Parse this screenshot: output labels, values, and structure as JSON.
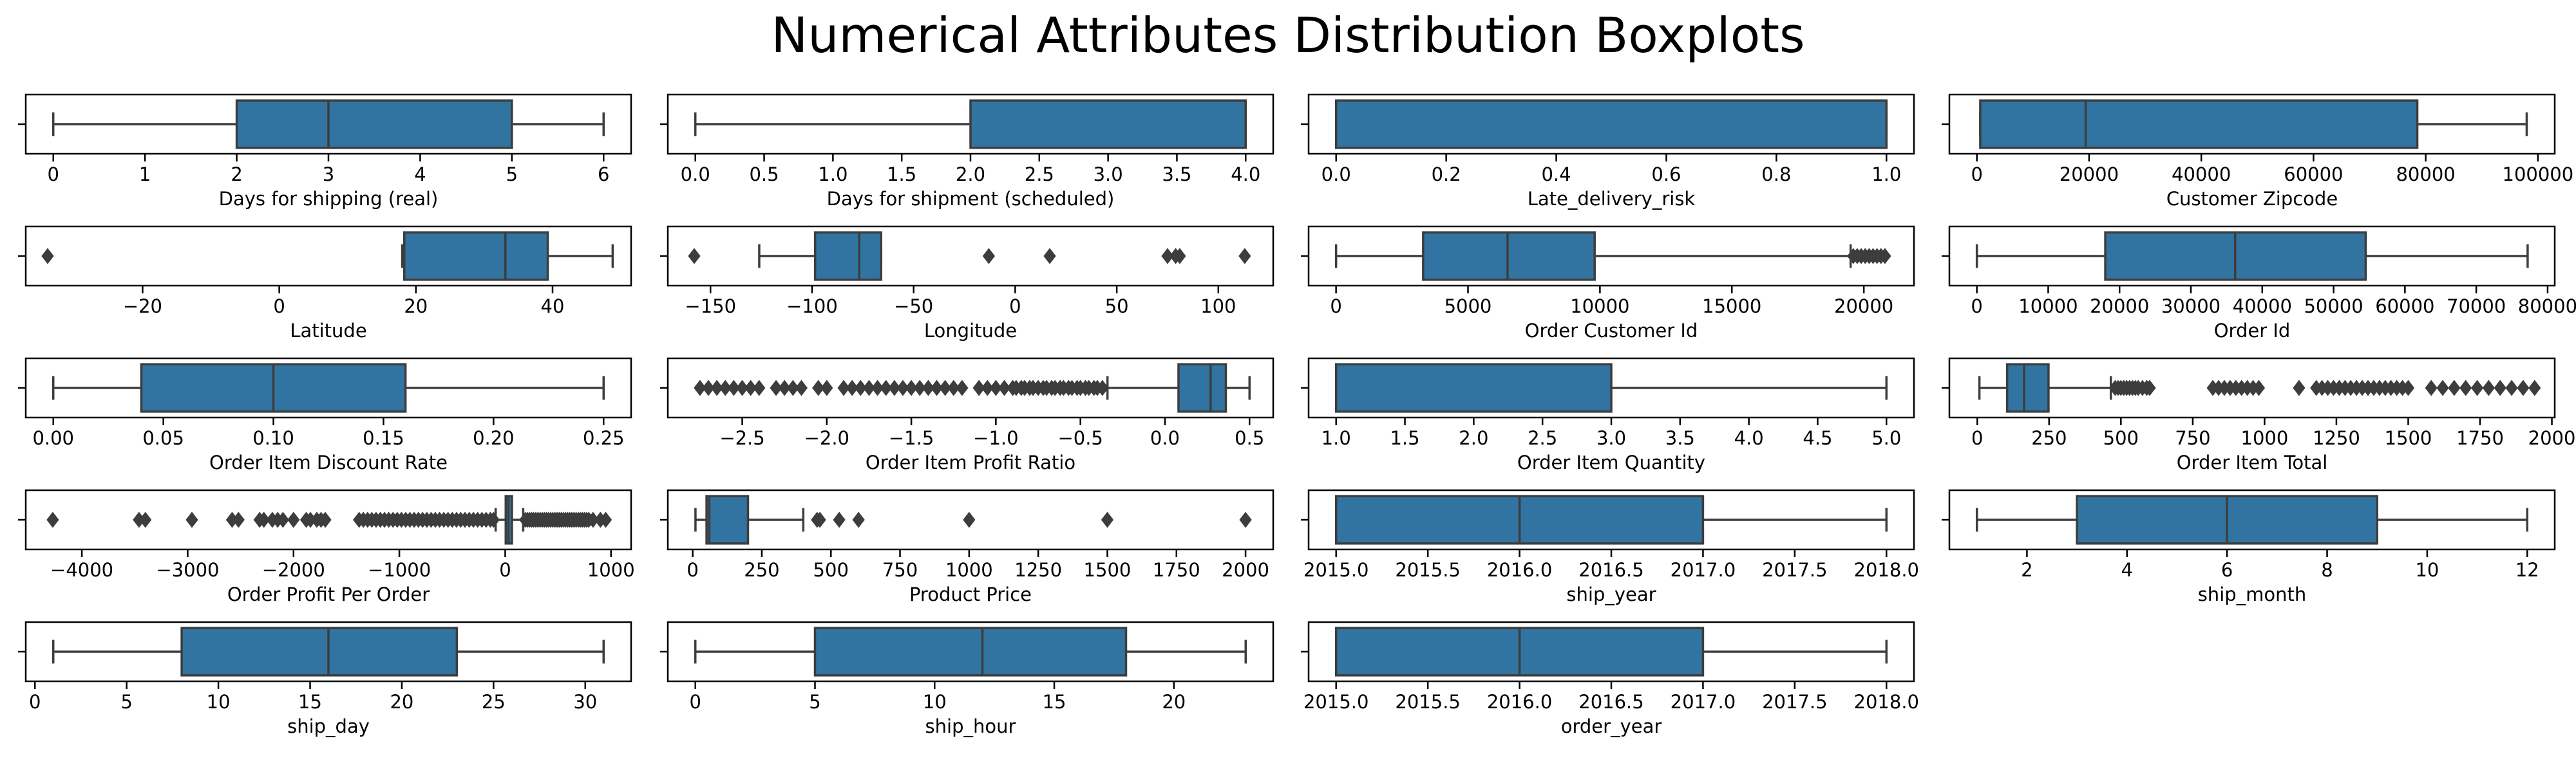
{
  "title": "Numerical Attributes Distribution Boxplots",
  "box_color": "#3274a1",
  "line_color": "#3d3d3d",
  "chart_data": [
    {
      "type": "boxplot",
      "xlabel": "Days for shipping (real)",
      "xlim": [
        -0.3,
        6.3
      ],
      "ticks": [
        0,
        1,
        2,
        3,
        4,
        5,
        6
      ],
      "tick_labels": [
        "0",
        "1",
        "2",
        "3",
        "4",
        "5",
        "6"
      ],
      "whisker_low": 0,
      "q1": 2,
      "median": 3,
      "q3": 5,
      "whisker_high": 6,
      "outliers": []
    },
    {
      "type": "boxplot",
      "xlabel": "Days for shipment (scheduled)",
      "xlim": [
        -0.2,
        4.2
      ],
      "ticks": [
        0,
        0.5,
        1,
        1.5,
        2,
        2.5,
        3,
        3.5,
        4
      ],
      "tick_labels": [
        "0.0",
        "0.5",
        "1.0",
        "1.5",
        "2.0",
        "2.5",
        "3.0",
        "3.5",
        "4.0"
      ],
      "whisker_low": 0,
      "q1": 2,
      "median": 4,
      "q3": 4,
      "whisker_high": 4,
      "outliers": []
    },
    {
      "type": "boxplot",
      "xlabel": "Late_delivery_risk",
      "xlim": [
        -0.05,
        1.05
      ],
      "ticks": [
        0,
        0.2,
        0.4,
        0.6,
        0.8,
        1
      ],
      "tick_labels": [
        "0.0",
        "0.2",
        "0.4",
        "0.6",
        "0.8",
        "1.0"
      ],
      "whisker_low": 0,
      "q1": 0,
      "median": 1,
      "q3": 1,
      "whisker_high": 1,
      "outliers": []
    },
    {
      "type": "boxplot",
      "xlabel": "Customer Zipcode",
      "xlim": [
        -4900,
        103000
      ],
      "ticks": [
        0,
        20000,
        40000,
        60000,
        80000,
        100000
      ],
      "tick_labels": [
        "0",
        "20000",
        "40000",
        "60000",
        "80000",
        "100000"
      ],
      "whisker_low": 600,
      "q1": 600,
      "median": 19400,
      "q3": 78500,
      "whisker_high": 98000,
      "outliers": []
    },
    {
      "type": "boxplot",
      "xlabel": "Latitude",
      "xlim": [
        -37.1,
        51.5
      ],
      "ticks": [
        -20,
        0,
        20,
        40
      ],
      "tick_labels": [
        "−20",
        "0",
        "20",
        "40"
      ],
      "whisker_low": 18,
      "q1": 18.3,
      "median": 33.1,
      "q3": 39.3,
      "whisker_high": 48.8,
      "outliers": [
        -33.9
      ]
    },
    {
      "type": "boxplot",
      "xlabel": "Longitude",
      "xlim": [
        -171,
        127
      ],
      "ticks": [
        -150,
        -100,
        -50,
        0,
        50,
        100
      ],
      "tick_labels": [
        "−150",
        "−100",
        "−50",
        "0",
        "50",
        "100"
      ],
      "whisker_low": -126,
      "q1": -98.5,
      "median": -76.8,
      "q3": -66,
      "whisker_high": -66,
      "outliers": [
        -158,
        -13,
        17,
        75,
        79,
        81,
        113
      ]
    },
    {
      "type": "boxplot",
      "xlabel": "Order Customer Id",
      "xlim": [
        -1040,
        21900
      ],
      "ticks": [
        0,
        5000,
        10000,
        15000,
        20000
      ],
      "tick_labels": [
        "0",
        "5000",
        "10000",
        "15000",
        "20000"
      ],
      "whisker_low": 1,
      "q1": 3300,
      "median": 6500,
      "q3": 9800,
      "whisker_high": 19500,
      "outliers": [
        19600,
        19750,
        19900,
        20050,
        20200,
        20350,
        20500,
        20650,
        20800
      ]
    },
    {
      "type": "boxplot",
      "xlabel": "Order Id",
      "xlim": [
        -3850,
        81000
      ],
      "ticks": [
        0,
        10000,
        20000,
        30000,
        40000,
        50000,
        60000,
        70000,
        80000
      ],
      "tick_labels": [
        "0",
        "10000",
        "20000",
        "30000",
        "40000",
        "50000",
        "60000",
        "70000",
        "80000"
      ],
      "whisker_low": 1,
      "q1": 18000,
      "median": 36200,
      "q3": 54500,
      "whisker_high": 77200,
      "outliers": []
    },
    {
      "type": "boxplot",
      "xlabel": "Order Item Discount Rate",
      "xlim": [
        -0.0125,
        0.2625
      ],
      "ticks": [
        0,
        0.05,
        0.1,
        0.15,
        0.2,
        0.25
      ],
      "tick_labels": [
        "0.00",
        "0.05",
        "0.10",
        "0.15",
        "0.20",
        "0.25"
      ],
      "whisker_low": 0,
      "q1": 0.04,
      "median": 0.1,
      "q3": 0.16,
      "whisker_high": 0.25,
      "outliers": []
    },
    {
      "type": "boxplot",
      "xlabel": "Order Item Profit Ratio",
      "xlim": [
        -2.94,
        0.64
      ],
      "ticks": [
        -2.5,
        -2,
        -1.5,
        -1,
        -0.5,
        0,
        0.5
      ],
      "tick_labels": [
        "−2.5",
        "−2.0",
        "−1.5",
        "−1.0",
        "−0.5",
        "0.0",
        "0.5"
      ],
      "whisker_low": -0.34,
      "q1": 0.08,
      "median": 0.27,
      "q3": 0.36,
      "whisker_high": 0.5,
      "outliers": [
        -2.75,
        -2.7,
        -2.65,
        -2.6,
        -2.55,
        -2.5,
        -2.45,
        -2.4,
        -2.3,
        -2.25,
        -2.2,
        -2.15,
        -2.05,
        -2.0,
        -1.9,
        -1.85,
        -1.8,
        -1.75,
        -1.7,
        -1.65,
        -1.6,
        -1.55,
        -1.5,
        -1.45,
        -1.4,
        -1.35,
        -1.3,
        -1.25,
        -1.2,
        -1.1,
        -1.05,
        -1.0,
        -0.95,
        -0.9,
        -0.88,
        -0.85,
        -0.83,
        -0.8,
        -0.78,
        -0.75,
        -0.72,
        -0.7,
        -0.67,
        -0.65,
        -0.62,
        -0.6,
        -0.57,
        -0.55,
        -0.52,
        -0.5,
        -0.47,
        -0.45,
        -0.42,
        -0.4,
        -0.37
      ]
    },
    {
      "type": "boxplot",
      "xlabel": "Order Item Quantity",
      "xlim": [
        0.8,
        5.2
      ],
      "ticks": [
        1,
        1.5,
        2,
        2.5,
        3,
        3.5,
        4,
        4.5,
        5
      ],
      "tick_labels": [
        "1.0",
        "1.5",
        "2.0",
        "2.5",
        "3.0",
        "3.5",
        "4.0",
        "4.5",
        "5.0"
      ],
      "whisker_low": 1,
      "q1": 1,
      "median": 1,
      "q3": 3,
      "whisker_high": 5,
      "outliers": []
    },
    {
      "type": "boxplot",
      "xlabel": "Order Item Total",
      "xlim": [
        -97,
        2010
      ],
      "ticks": [
        0,
        250,
        500,
        750,
        1000,
        1250,
        1500,
        1750,
        2000
      ],
      "tick_labels": [
        "0",
        "250",
        "500",
        "750",
        "1000",
        "1250",
        "1500",
        "1750",
        "2000"
      ],
      "whisker_low": 7.5,
      "q1": 104,
      "median": 163,
      "q3": 248,
      "whisker_high": 465,
      "outliers": [
        480,
        490,
        500,
        510,
        520,
        530,
        540,
        550,
        560,
        575,
        590,
        600,
        820,
        840,
        860,
        880,
        900,
        920,
        940,
        960,
        980,
        1120,
        1180,
        1200,
        1220,
        1240,
        1260,
        1280,
        1300,
        1320,
        1340,
        1360,
        1380,
        1400,
        1420,
        1440,
        1460,
        1480,
        1500,
        1580,
        1620,
        1660,
        1700,
        1740,
        1780,
        1820,
        1860,
        1900,
        1940
      ]
    },
    {
      "type": "boxplot",
      "xlabel": "Order Profit Per Order",
      "xlim": [
        -4530,
        1190
      ],
      "ticks": [
        -4000,
        -3000,
        -2000,
        -1000,
        0,
        1000
      ],
      "tick_labels": [
        "−4000",
        "−3000",
        "−2000",
        "−1000",
        "0",
        "1000"
      ],
      "whisker_low": -90,
      "q1": 5,
      "median": 31,
      "q3": 64,
      "whisker_high": 170,
      "outliers": [
        -4275,
        -3460,
        -3400,
        -2960,
        -2580,
        -2520,
        -2320,
        -2280,
        -2200,
        -2150,
        -2100,
        -2000,
        -1880,
        -1840,
        -1780,
        -1740,
        -1700,
        -1380,
        -1340,
        -1300,
        -1260,
        -1220,
        -1180,
        -1140,
        -1100,
        -1060,
        -1020,
        -980,
        -940,
        -900,
        -860,
        -820,
        -780,
        -740,
        -700,
        -660,
        -620,
        -580,
        -540,
        -500,
        -460,
        -420,
        -380,
        -340,
        -300,
        -260,
        -220,
        -180,
        -140,
        -110,
        190,
        210,
        230,
        250,
        270,
        290,
        310,
        330,
        350,
        370,
        390,
        410,
        430,
        450,
        470,
        490,
        510,
        530,
        550,
        570,
        590,
        610,
        630,
        650,
        670,
        690,
        710,
        730,
        750,
        770,
        790,
        830,
        900,
        950
      ]
    },
    {
      "type": "boxplot",
      "xlabel": "Product Price",
      "xlim": [
        -90,
        2100
      ],
      "ticks": [
        0,
        250,
        500,
        750,
        1000,
        1250,
        1500,
        1750,
        2000
      ],
      "tick_labels": [
        "0",
        "250",
        "500",
        "750",
        "1000",
        "1250",
        "1500",
        "1750",
        "2000"
      ],
      "whisker_low": 10,
      "q1": 50,
      "median": 60,
      "q3": 200,
      "whisker_high": 400,
      "outliers": [
        450,
        460,
        530,
        600,
        1000,
        1500,
        2000
      ]
    },
    {
      "type": "boxplot",
      "xlabel": "ship_year",
      "xlim": [
        2014.85,
        2018.15
      ],
      "ticks": [
        2015,
        2015.5,
        2016,
        2016.5,
        2017,
        2017.5,
        2018
      ],
      "tick_labels": [
        "2015.0",
        "2015.5",
        "2016.0",
        "2016.5",
        "2017.0",
        "2017.5",
        "2018.0"
      ],
      "whisker_low": 2015,
      "q1": 2015,
      "median": 2016,
      "q3": 2017,
      "whisker_high": 2018,
      "outliers": []
    },
    {
      "type": "boxplot",
      "xlabel": "ship_month",
      "xlim": [
        0.45,
        12.55
      ],
      "ticks": [
        2,
        4,
        6,
        8,
        10,
        12
      ],
      "tick_labels": [
        "2",
        "4",
        "6",
        "8",
        "10",
        "12"
      ],
      "whisker_low": 1,
      "q1": 3,
      "median": 6,
      "q3": 9,
      "whisker_high": 12,
      "outliers": []
    },
    {
      "type": "boxplot",
      "xlabel": "ship_day",
      "xlim": [
        -0.5,
        32.5
      ],
      "ticks": [
        0,
        5,
        10,
        15,
        20,
        25,
        30
      ],
      "tick_labels": [
        "0",
        "5",
        "10",
        "15",
        "20",
        "25",
        "30"
      ],
      "whisker_low": 1,
      "q1": 8,
      "median": 16,
      "q3": 23,
      "whisker_high": 31,
      "outliers": []
    },
    {
      "type": "boxplot",
      "xlabel": "ship_hour",
      "xlim": [
        -1.15,
        24.15
      ],
      "ticks": [
        0,
        5,
        10,
        15,
        20
      ],
      "tick_labels": [
        "0",
        "5",
        "10",
        "15",
        "20"
      ],
      "whisker_low": 0,
      "q1": 5,
      "median": 12,
      "q3": 18,
      "whisker_high": 23,
      "outliers": []
    },
    {
      "type": "boxplot",
      "xlabel": "order_year",
      "xlim": [
        2014.85,
        2018.15
      ],
      "ticks": [
        2015,
        2015.5,
        2016,
        2016.5,
        2017,
        2017.5,
        2018
      ],
      "tick_labels": [
        "2015.0",
        "2015.5",
        "2016.0",
        "2016.5",
        "2017.0",
        "2017.5",
        "2018.0"
      ],
      "whisker_low": 2015,
      "q1": 2015,
      "median": 2016,
      "q3": 2017,
      "whisker_high": 2018,
      "outliers": []
    }
  ]
}
